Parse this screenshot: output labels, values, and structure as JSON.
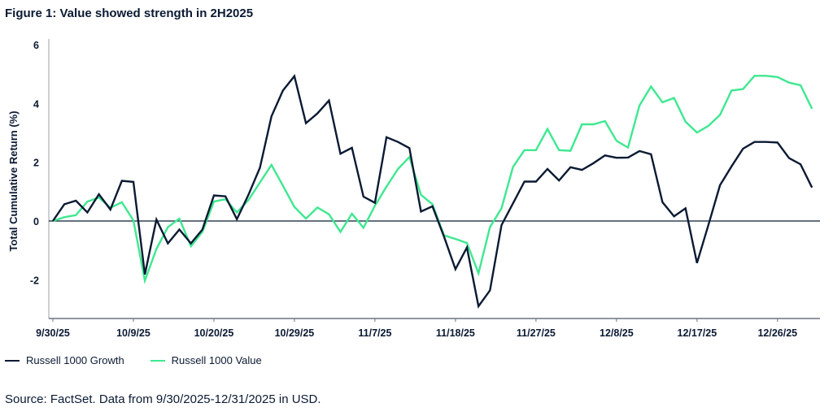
{
  "chart_data": {
    "type": "line",
    "title": "Figure 1: Value showed strength in 2H2025",
    "xlabel": "",
    "ylabel": "Total Cumulative Return (%)",
    "ylim": [
      -3.3,
      6
    ],
    "yticks": [
      -2,
      0,
      2,
      4,
      6
    ],
    "x_ticks": [
      {
        "index": 0,
        "label": "9/30/25"
      },
      {
        "index": 7,
        "label": "10/9/25"
      },
      {
        "index": 14,
        "label": "10/20/25"
      },
      {
        "index": 21,
        "label": "10/29/25"
      },
      {
        "index": 28,
        "label": "11/7/25"
      },
      {
        "index": 35,
        "label": "11/18/25"
      },
      {
        "index": 42,
        "label": "11/27/25"
      },
      {
        "index": 49,
        "label": "12/8/25"
      },
      {
        "index": 56,
        "label": "12/17/25"
      },
      {
        "index": 63,
        "label": "12/26/25"
      }
    ],
    "grid": false,
    "zero_line": true,
    "legend_position": "bottom-left",
    "series": [
      {
        "name": "Russell 1000 Growth",
        "color": "#0b1a33",
        "values": [
          0,
          0.57,
          0.69,
          0.29,
          0.91,
          0.39,
          1.37,
          1.33,
          -1.82,
          0.05,
          -0.76,
          -0.29,
          -0.76,
          -0.29,
          0.87,
          0.84,
          0.06,
          0.89,
          1.81,
          3.56,
          4.44,
          4.93,
          3.33,
          3.66,
          4.1,
          2.29,
          2.49,
          0.83,
          0.62,
          2.85,
          2.69,
          2.48,
          0.32,
          0.5,
          -0.53,
          -1.64,
          -0.9,
          -2.9,
          -2.36,
          -0.14,
          0.6,
          1.34,
          1.34,
          1.77,
          1.38,
          1.83,
          1.74,
          1.97,
          2.23,
          2.15,
          2.16,
          2.38,
          2.27,
          0.64,
          0.16,
          0.43,
          -1.43,
          -0.12,
          1.22,
          1.86,
          2.46,
          2.69,
          2.69,
          2.67,
          2.14,
          1.93,
          1.14
        ]
      },
      {
        "name": "Russell 1000 Value",
        "color": "#3ee890",
        "values": [
          0,
          0.13,
          0.2,
          0.66,
          0.8,
          0.45,
          0.64,
          0.02,
          -2.03,
          -0.95,
          -0.21,
          0.08,
          -0.86,
          -0.37,
          0.66,
          0.74,
          0.29,
          0.71,
          1.31,
          1.91,
          1.2,
          0.48,
          0.08,
          0.46,
          0.23,
          -0.37,
          0.25,
          -0.23,
          0.52,
          1.17,
          1.77,
          2.18,
          0.89,
          0.57,
          -0.49,
          -0.61,
          -0.75,
          -1.78,
          -0.21,
          0.43,
          1.84,
          2.41,
          2.41,
          3.13,
          2.41,
          2.39,
          3.29,
          3.29,
          3.4,
          2.73,
          2.5,
          3.93,
          4.58,
          4.04,
          4.19,
          3.38,
          3.01,
          3.24,
          3.61,
          4.44,
          4.49,
          4.94,
          4.94,
          4.9,
          4.71,
          4.62,
          3.82
        ]
      }
    ]
  },
  "source": "Source: FactSet. Data from 9/30/2025-12/31/2025 in USD."
}
